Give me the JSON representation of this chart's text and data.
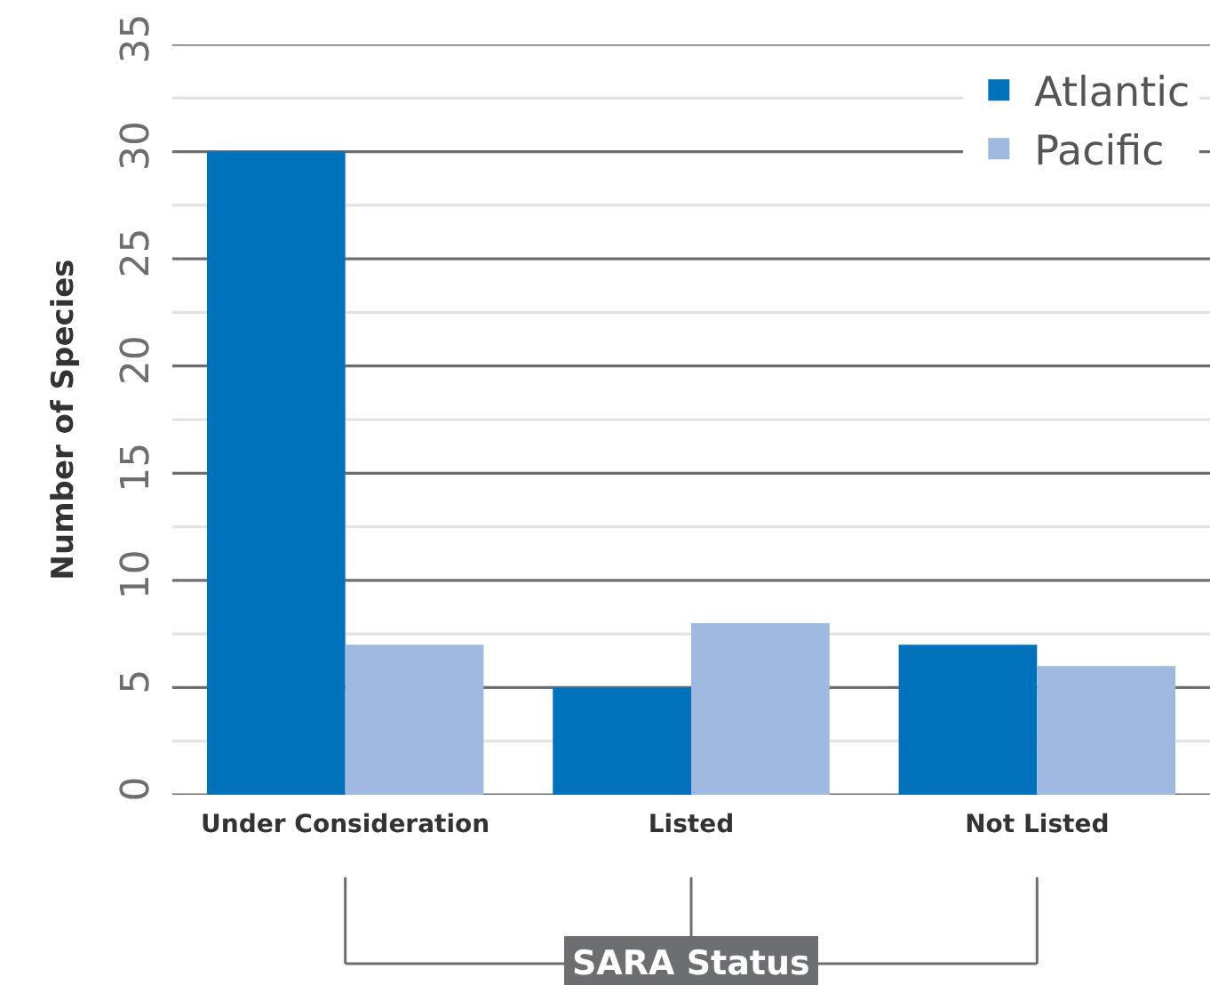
{
  "chart_data": {
    "type": "bar",
    "xlabel": "SARA Status",
    "ylabel": "Number of Species",
    "categories": [
      "Under Consideration",
      "Listed",
      "Not Listed"
    ],
    "series": [
      {
        "name": "Atlantic",
        "color": "#0072bc",
        "values": [
          30,
          5,
          7
        ]
      },
      {
        "name": "Pacific",
        "color": "#a0b9e0",
        "values": [
          7,
          8,
          6
        ]
      }
    ],
    "ylim": [
      0,
      35
    ],
    "yticks": [
      0,
      {
        "value": 2.5,
        "label": null
      },
      5,
      {
        "value": 7.5,
        "label": null
      },
      10,
      {
        "value": 12.5,
        "label": null
      },
      15,
      {
        "value": 17.5,
        "label": null
      },
      20,
      {
        "value": 22.5,
        "label": null
      },
      25,
      {
        "value": 27.5,
        "label": null
      },
      30,
      {
        "value": 32.5,
        "label": null
      },
      35
    ],
    "grid": "y",
    "legend": "top right"
  }
}
